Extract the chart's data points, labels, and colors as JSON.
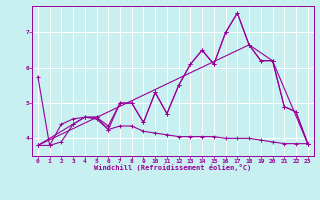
{
  "xlabel": "Windchill (Refroidissement éolien,°C)",
  "bg_color": "#c8f0f0",
  "grid_color": "#ffffff",
  "line_color": "#990099",
  "xlim": [
    -0.5,
    23.5
  ],
  "ylim": [
    3.5,
    7.75
  ],
  "yticks": [
    4,
    5,
    6,
    7
  ],
  "xticks": [
    0,
    1,
    2,
    3,
    4,
    5,
    6,
    7,
    8,
    9,
    10,
    11,
    12,
    13,
    14,
    15,
    16,
    17,
    18,
    19,
    20,
    21,
    22,
    23
  ],
  "line1_x": [
    0,
    1,
    2,
    3,
    4,
    5,
    6,
    7,
    8,
    9,
    10,
    11,
    12,
    13,
    14,
    15,
    16,
    17,
    18,
    19,
    20,
    21,
    22,
    23
  ],
  "line1_y": [
    5.75,
    3.8,
    4.4,
    4.55,
    4.6,
    4.55,
    4.25,
    5.0,
    5.0,
    4.45,
    5.3,
    4.7,
    5.5,
    6.1,
    6.5,
    6.1,
    7.0,
    7.55,
    6.65,
    6.2,
    6.2,
    4.9,
    4.75,
    3.85
  ],
  "line2_x": [
    0,
    1,
    2,
    3,
    4,
    5,
    6,
    7,
    8,
    9,
    10,
    11,
    12,
    13,
    14,
    15,
    16,
    17,
    18,
    19,
    20,
    21,
    22,
    23
  ],
  "line2_y": [
    3.8,
    3.8,
    3.9,
    4.4,
    4.6,
    4.6,
    4.35,
    5.0,
    5.0,
    4.45,
    5.3,
    4.7,
    5.5,
    6.1,
    6.5,
    6.1,
    7.0,
    7.55,
    6.65,
    6.2,
    6.2,
    4.9,
    4.75,
    3.85
  ],
  "line3_x": [
    0,
    3,
    4,
    5,
    6,
    7,
    8,
    9,
    10,
    11,
    12,
    13,
    14,
    15,
    16,
    17,
    18,
    19,
    20,
    21,
    22,
    23
  ],
  "line3_y": [
    3.8,
    4.4,
    4.6,
    4.6,
    4.25,
    4.35,
    4.35,
    4.2,
    4.15,
    4.1,
    4.05,
    4.05,
    4.05,
    4.05,
    4.0,
    4.0,
    4.0,
    3.95,
    3.9,
    3.85,
    3.85,
    3.85
  ],
  "line4_x": [
    0,
    18,
    20,
    23
  ],
  "line4_y": [
    3.8,
    6.65,
    6.2,
    3.85
  ]
}
